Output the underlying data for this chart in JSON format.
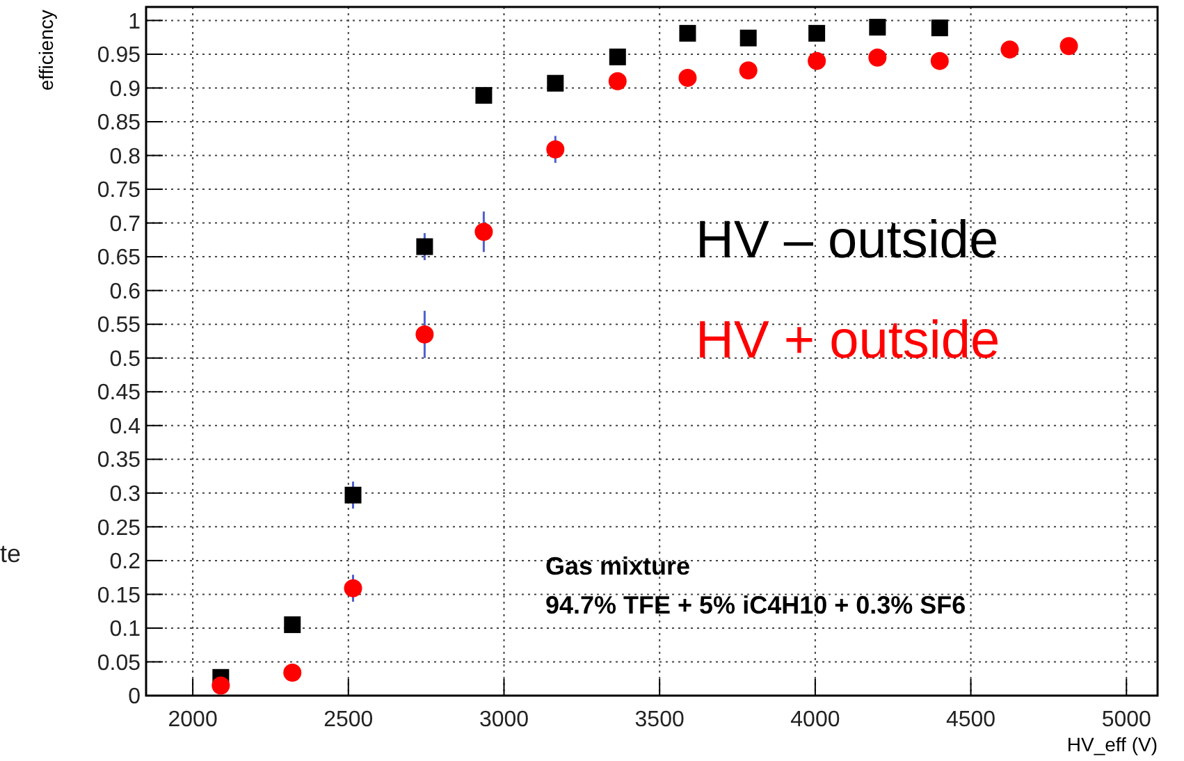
{
  "chart_data": {
    "type": "scatter",
    "xlabel": "HV_eff (V)",
    "ylabel": "efficiency",
    "xlim": [
      1850,
      5100
    ],
    "ylim": [
      0,
      1.02
    ],
    "xticks": [
      2000,
      2500,
      3000,
      3500,
      4000,
      4500,
      5000
    ],
    "yticks": [
      0,
      0.05,
      0.1,
      0.15,
      0.2,
      0.25,
      0.3,
      0.35,
      0.4,
      0.45,
      0.5,
      0.55,
      0.6,
      0.65,
      0.7,
      0.75,
      0.8,
      0.85,
      0.9,
      0.95,
      1
    ],
    "grid": true,
    "legend": "right",
    "series": [
      {
        "name": "HV – outside",
        "color": "#000000",
        "marker": "square",
        "x": [
          2090,
          2320,
          2515,
          2745,
          2935,
          3165,
          3365,
          3590,
          3785,
          4005,
          4200,
          4400
        ],
        "values": [
          0.027,
          0.105,
          0.297,
          0.665,
          0.889,
          0.907,
          0.946,
          0.981,
          0.974,
          0.981,
          0.99,
          0.989
        ],
        "errors": [
          null,
          null,
          0.02,
          0.02,
          null,
          null,
          null,
          null,
          null,
          null,
          null,
          null
        ]
      },
      {
        "name": "HV + outside",
        "color": "#ff0000",
        "marker": "circle",
        "x": [
          2090,
          2320,
          2515,
          2745,
          2935,
          3165,
          3365,
          3590,
          3785,
          4005,
          4200,
          4400,
          4625,
          4815
        ],
        "values": [
          0.015,
          0.034,
          0.159,
          0.535,
          0.687,
          0.809,
          0.91,
          0.915,
          0.926,
          0.94,
          0.945,
          0.94,
          0.957,
          0.962
        ],
        "errors": [
          null,
          null,
          0.02,
          0.035,
          0.03,
          0.02,
          null,
          null,
          null,
          null,
          null,
          null,
          null,
          null
        ]
      }
    ],
    "annotations": [
      "Gas mixture",
      "94.7% TFE + 5% iC4H10 + 0.3% SF6",
      "te"
    ]
  }
}
